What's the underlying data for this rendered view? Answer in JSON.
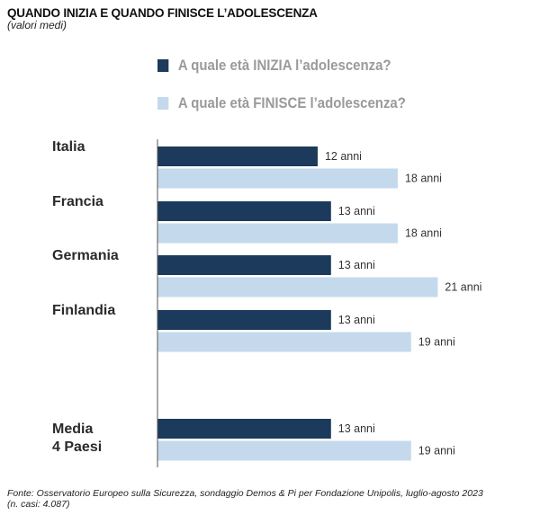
{
  "chart_data": {
    "type": "bar",
    "orientation": "horizontal",
    "title": "QUANDO INIZIA E QUANDO FINISCE L’ADOLESCENZA",
    "subtitle": "(valori medi)",
    "categories": [
      [
        "Italia"
      ],
      [
        "Francia"
      ],
      [
        "Germania"
      ],
      [
        "Finlandia"
      ],
      [
        "Media",
        "4 Paesi"
      ]
    ],
    "series": [
      {
        "name": "A quale età INIZIA l’adolescenza?",
        "color": "#1b3a5c",
        "values": [
          12,
          13,
          13,
          13,
          13
        ],
        "labels": [
          "12 anni",
          "13 anni",
          "13 anni",
          "13 anni",
          "13 anni"
        ]
      },
      {
        "name": "A quale età FINISCE l’adolescenza?",
        "color": "#c5d9ec",
        "values": [
          18,
          18,
          21,
          19,
          19
        ],
        "labels": [
          "18 anni",
          "18 anni",
          "21 anni",
          "19 anni",
          "19 anni"
        ]
      }
    ],
    "xlim": [
      0,
      21
    ],
    "grid": false,
    "legend": "top",
    "source": "Fonte: Osservatorio Europeo sulla Sicurezza, sondaggio Demos & Pi per Fondazione Unipolis, luglio-agosto 2023",
    "note": "(n. casi: 4.087)"
  }
}
